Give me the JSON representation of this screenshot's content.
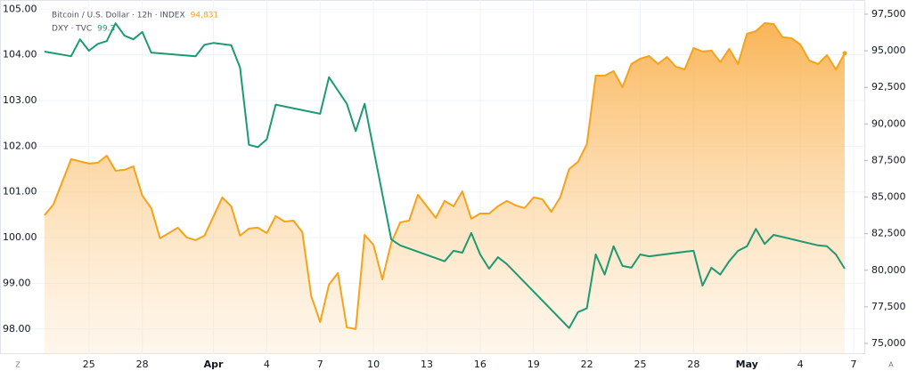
{
  "chart_data": {
    "type": "line",
    "axis_buttons": {
      "left": "Z",
      "right": "A"
    },
    "xlim": [
      -5,
      43.6
    ],
    "xticks": [
      {
        "value": 0,
        "label": "25"
      },
      {
        "value": 3,
        "label": "28"
      },
      {
        "value": 7,
        "label": "Apr"
      },
      {
        "value": 10,
        "label": "4"
      },
      {
        "value": 13,
        "label": "7"
      },
      {
        "value": 16,
        "label": "10"
      },
      {
        "value": 19,
        "label": "13"
      },
      {
        "value": 22,
        "label": "16"
      },
      {
        "value": 25,
        "label": "19"
      },
      {
        "value": 28,
        "label": "22"
      },
      {
        "value": 31,
        "label": "25"
      },
      {
        "value": 34,
        "label": "28"
      },
      {
        "value": 37,
        "label": "May"
      },
      {
        "value": 40,
        "label": "4"
      },
      {
        "value": 43,
        "label": "7"
      }
    ],
    "ylim": [
      97.45,
      105.2
    ],
    "yticks": [
      {
        "value": 98,
        "label": "98.00"
      },
      {
        "value": 99,
        "label": "99.00"
      },
      {
        "value": 100,
        "label": "100.00"
      },
      {
        "value": 101,
        "label": "101.00"
      },
      {
        "value": 102,
        "label": "102.00"
      },
      {
        "value": 103,
        "label": "103.00"
      },
      {
        "value": 104,
        "label": "104.00"
      },
      {
        "value": 105,
        "label": "105.00"
      }
    ],
    "y2lim": [
      74270,
      98470
    ],
    "y2ticks": [
      {
        "value": 75000,
        "label": "75,000"
      },
      {
        "value": 77500,
        "label": "77,500"
      },
      {
        "value": 80000,
        "label": "80,000"
      },
      {
        "value": 82500,
        "label": "82,500"
      },
      {
        "value": 85000,
        "label": "85,000"
      },
      {
        "value": 87500,
        "label": "87,500"
      },
      {
        "value": 90000,
        "label": "90,000"
      },
      {
        "value": 92500,
        "label": "92,500"
      },
      {
        "value": 95000,
        "label": "95,000"
      },
      {
        "value": 97500,
        "label": "97,500"
      }
    ],
    "grid": true,
    "series": [
      {
        "name": "Bitcoin / U.S. Dollar · 12h · INDEX",
        "last_value_label": "94,831",
        "color": "#f7a21b",
        "axis": "y2",
        "area": true,
        "x": [
          -2.5,
          -2,
          -1,
          0,
          0.5,
          1,
          1.5,
          2,
          2.5,
          3,
          3.5,
          4,
          5,
          5.5,
          6,
          6.5,
          7.5,
          8,
          8.5,
          9,
          9.5,
          10,
          10.5,
          11,
          11.5,
          12,
          12.5,
          13,
          13.5,
          14,
          14.5,
          15,
          15.5,
          16,
          16.5,
          17,
          17.5,
          18,
          18.5,
          19,
          19.5,
          20,
          20.5,
          21,
          21.5,
          22,
          22.5,
          23,
          23.5,
          24,
          24.5,
          25,
          25.5,
          26,
          26.5,
          27,
          27.5,
          28,
          28.5,
          29,
          29.5,
          30,
          30.5,
          31,
          31.5,
          32,
          32.5,
          33,
          33.5,
          34,
          34.5,
          35,
          35.5,
          36,
          36.5,
          37,
          37.5,
          38,
          38.5,
          39,
          39.5,
          40,
          40.5,
          41,
          41.5,
          42,
          42.5
        ],
        "values": [
          83760,
          84490,
          87590,
          87290,
          87350,
          87830,
          86800,
          86860,
          87100,
          85100,
          84250,
          82180,
          82910,
          82240,
          82060,
          82360,
          84980,
          84370,
          82360,
          82850,
          82910,
          82540,
          83700,
          83330,
          83390,
          82600,
          78230,
          76460,
          79020,
          79810,
          76100,
          75980,
          82420,
          81750,
          79380,
          81870,
          83270,
          83390,
          85160,
          84370,
          83580,
          84740,
          84370,
          85400,
          83520,
          83880,
          83880,
          84370,
          84740,
          84430,
          84250,
          84980,
          84850,
          84000,
          84980,
          86920,
          87410,
          88620,
          93300,
          93300,
          93610,
          92510,
          94090,
          94460,
          94640,
          94100,
          94580,
          93910,
          93730,
          95190,
          94950,
          95010,
          94220,
          95130,
          94100,
          96160,
          96340,
          96890,
          96830,
          95920,
          95860,
          95430,
          94340,
          94100,
          94700,
          93730,
          94831
        ]
      },
      {
        "name": "DXY · TVC",
        "last_value_label": "99.3",
        "color": "#1e9a72",
        "x": [
          -2.5,
          -1,
          -0.5,
          0,
          0.5,
          1,
          1.5,
          2,
          2.5,
          3,
          3.5,
          6,
          6.5,
          7,
          8,
          8.5,
          9,
          9.5,
          10,
          10.5,
          13,
          13.5,
          14.5,
          15,
          15.5,
          17,
          17.5,
          20,
          20.5,
          21,
          21.5,
          22,
          22.5,
          23,
          23.5,
          27,
          27.5,
          28,
          28.5,
          29,
          29.5,
          30,
          30.5,
          31,
          31.5,
          33.5,
          34,
          34.5,
          35,
          35.5,
          36,
          36.5,
          37,
          37.5,
          38,
          38.5,
          41,
          41.5,
          42,
          42.5
        ],
        "values": [
          104.07,
          103.97,
          104.34,
          104.09,
          104.24,
          104.3,
          104.69,
          104.42,
          104.34,
          104.5,
          104.05,
          103.97,
          104.22,
          104.26,
          104.21,
          103.72,
          102.03,
          101.98,
          102.15,
          102.91,
          102.71,
          103.51,
          102.93,
          102.33,
          102.93,
          99.96,
          99.83,
          99.48,
          99.71,
          99.67,
          100.1,
          99.63,
          99.32,
          99.57,
          99.42,
          98.02,
          98.37,
          98.45,
          99.63,
          99.19,
          99.81,
          99.38,
          99.34,
          99.63,
          99.59,
          99.69,
          99.71,
          98.95,
          99.34,
          99.19,
          99.48,
          99.71,
          99.81,
          100.19,
          99.86,
          100.06,
          99.83,
          99.81,
          99.63,
          99.32
        ]
      }
    ]
  }
}
